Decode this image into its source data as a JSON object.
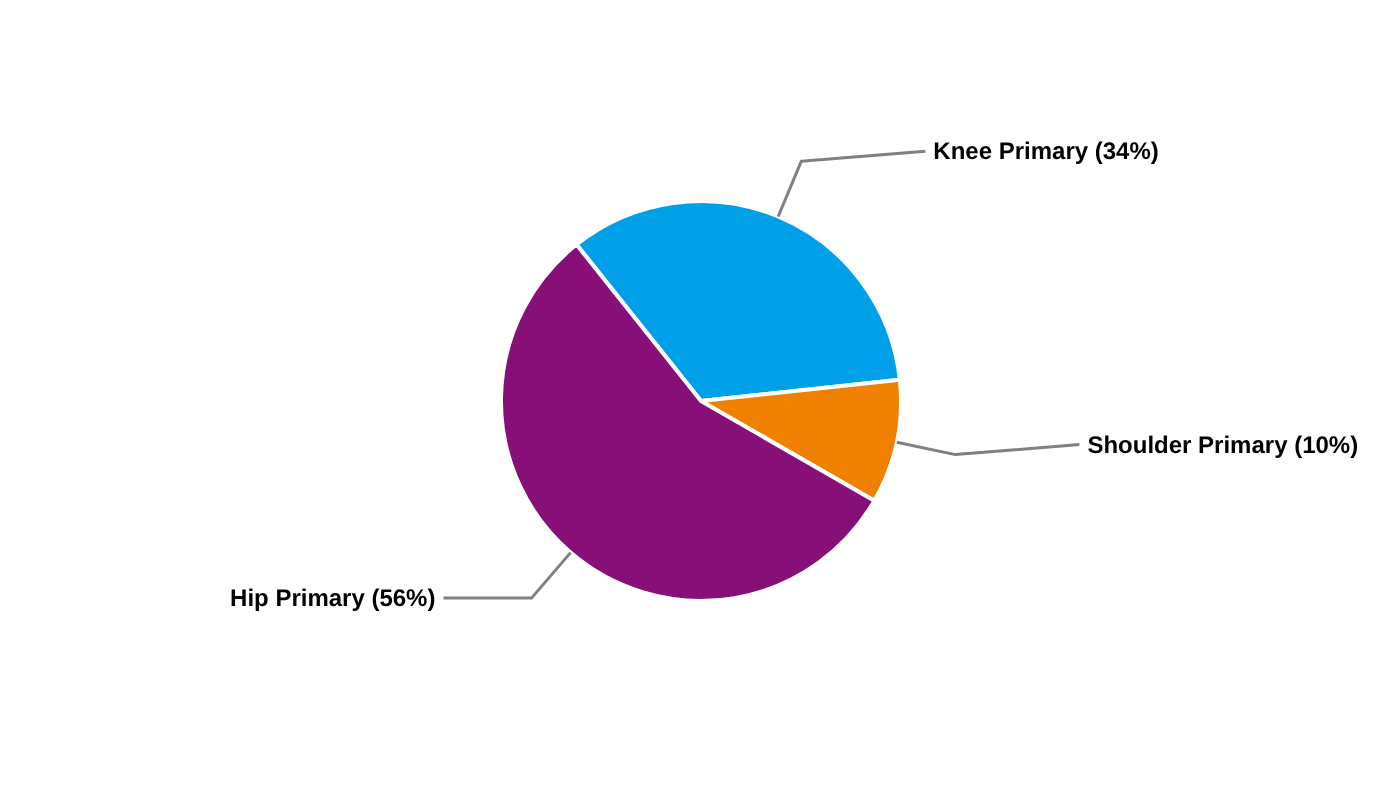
{
  "chart_data": {
    "type": "pie",
    "categories": [
      "Knee Primary",
      "Shoulder Primary",
      "Hip Primary"
    ],
    "values": [
      34,
      10,
      56
    ],
    "value_labels": [
      "(34%)",
      "(10%)",
      "(56%)"
    ],
    "colors": [
      "#00a0e9",
      "#f08000",
      "#861078"
    ]
  }
}
